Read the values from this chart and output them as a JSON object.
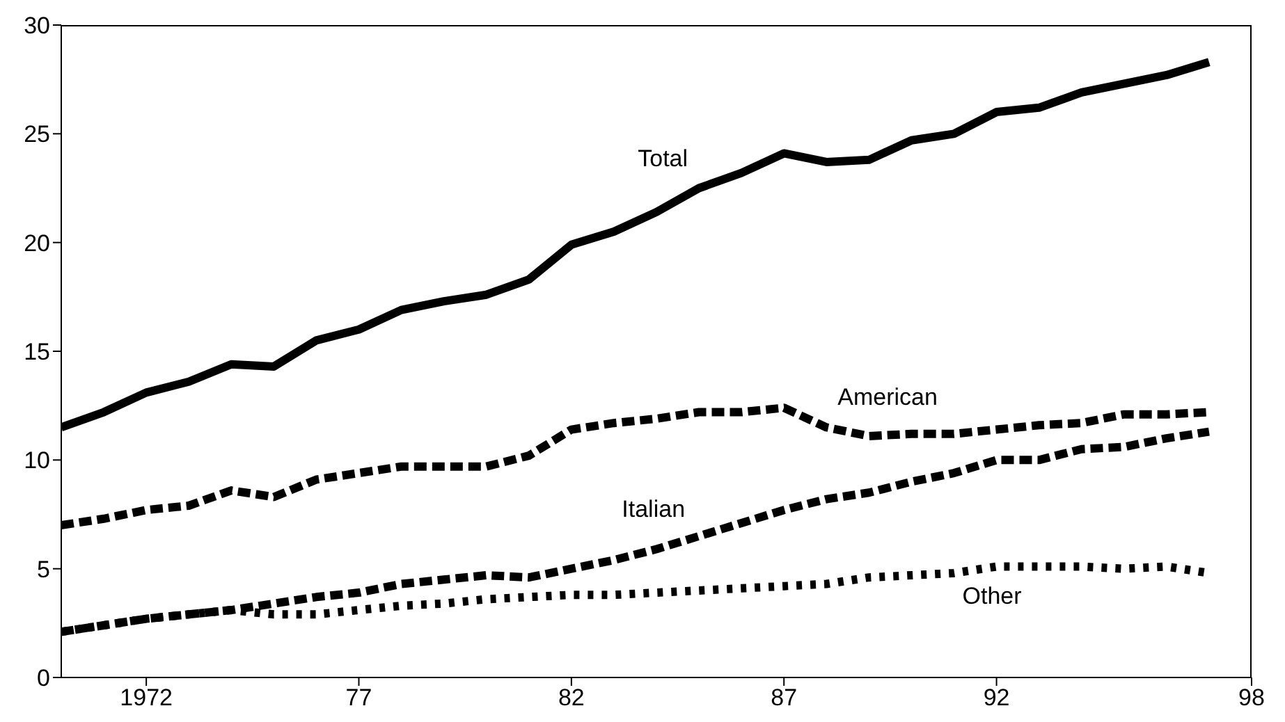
{
  "chart_data": {
    "type": "line",
    "x": [
      1970,
      1971,
      1972,
      1973,
      1974,
      1975,
      1976,
      1977,
      1978,
      1979,
      1980,
      1981,
      1982,
      1983,
      1984,
      1985,
      1986,
      1987,
      1988,
      1989,
      1990,
      1991,
      1992,
      1993,
      1994,
      1995,
      1996,
      1997
    ],
    "series": [
      {
        "name": "Total",
        "color": "#000000",
        "line_style": "solid",
        "values": [
          11.5,
          12.2,
          13.1,
          13.6,
          14.4,
          14.3,
          15.5,
          16.0,
          16.9,
          17.3,
          17.6,
          18.3,
          19.9,
          20.5,
          21.4,
          22.5,
          23.2,
          24.1,
          23.7,
          23.8,
          24.7,
          25.0,
          26.0,
          26.2,
          26.9,
          27.3,
          27.7,
          28.3
        ]
      },
      {
        "name": "American",
        "color": "#000000",
        "line_style": "dashed",
        "values": [
          7.0,
          7.3,
          7.7,
          7.9,
          8.6,
          8.3,
          9.1,
          9.4,
          9.7,
          9.7,
          9.7,
          10.2,
          11.4,
          11.7,
          11.9,
          12.2,
          12.2,
          12.4,
          11.5,
          11.1,
          11.2,
          11.2,
          11.4,
          11.6,
          11.7,
          12.1,
          12.1,
          12.2
        ]
      },
      {
        "name": "Italian",
        "color": "#000000",
        "line_style": "dashed",
        "values": [
          2.1,
          2.4,
          2.7,
          2.9,
          3.1,
          3.4,
          3.7,
          3.9,
          4.3,
          4.5,
          4.7,
          4.6,
          5.0,
          5.4,
          5.9,
          6.5,
          7.1,
          7.7,
          8.2,
          8.5,
          9.0,
          9.4,
          10.0,
          10.0,
          10.5,
          10.6,
          11.0,
          11.3
        ]
      },
      {
        "name": "Other",
        "color": "#000000",
        "line_style": "dotted",
        "values": [
          2.1,
          2.4,
          2.7,
          2.9,
          3.1,
          2.9,
          2.9,
          3.1,
          3.3,
          3.4,
          3.6,
          3.7,
          3.8,
          3.8,
          3.9,
          4.0,
          4.1,
          4.2,
          4.3,
          4.6,
          4.7,
          4.8,
          5.1,
          5.1,
          5.1,
          5.0,
          5.1,
          4.8
        ]
      }
    ],
    "xlim": [
      1970,
      1998
    ],
    "xticks": [
      {
        "value": 1972,
        "label": "1972"
      },
      {
        "value": 1977,
        "label": "77"
      },
      {
        "value": 1982,
        "label": "82"
      },
      {
        "value": 1987,
        "label": "87"
      },
      {
        "value": 1992,
        "label": "92"
      },
      {
        "value": 1998,
        "label": "98"
      }
    ],
    "ylim": [
      0,
      30
    ],
    "yticks": [
      0,
      5,
      10,
      15,
      20,
      25,
      30
    ],
    "grid": false,
    "marker": "none"
  }
}
